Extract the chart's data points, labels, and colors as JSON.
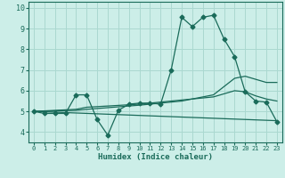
{
  "xlabel": "Humidex (Indice chaleur)",
  "bg_color": "#cceee8",
  "line_color": "#1a6b5a",
  "grid_color": "#aad8d0",
  "xlim": [
    -0.5,
    23.5
  ],
  "ylim": [
    3.5,
    10.3
  ],
  "yticks": [
    4,
    5,
    6,
    7,
    8,
    9,
    10
  ],
  "xticks": [
    0,
    1,
    2,
    3,
    4,
    5,
    6,
    7,
    8,
    9,
    10,
    11,
    12,
    13,
    14,
    15,
    16,
    17,
    18,
    19,
    20,
    21,
    22,
    23
  ],
  "line1_x": [
    0,
    1,
    2,
    3,
    4,
    5,
    6,
    7,
    8,
    9,
    10,
    11,
    12,
    13,
    14,
    15,
    16,
    17,
    18,
    19,
    20,
    21,
    22,
    23
  ],
  "line1_y": [
    5.0,
    4.9,
    4.9,
    4.9,
    5.8,
    5.8,
    4.6,
    3.85,
    5.05,
    5.35,
    5.4,
    5.4,
    5.35,
    7.0,
    9.55,
    9.1,
    9.55,
    9.65,
    8.5,
    7.65,
    5.95,
    5.5,
    5.45,
    4.5
  ],
  "line2_x": [
    0,
    4,
    5,
    10,
    14,
    15,
    16,
    17,
    19,
    20,
    21,
    22,
    23
  ],
  "line2_y": [
    5.0,
    5.05,
    5.1,
    5.3,
    5.5,
    5.6,
    5.7,
    5.8,
    6.6,
    6.7,
    6.55,
    6.4,
    6.4
  ],
  "line3_x": [
    0,
    4,
    5,
    10,
    14,
    15,
    16,
    17,
    19,
    20,
    21,
    22,
    23
  ],
  "line3_y": [
    5.0,
    5.1,
    5.2,
    5.35,
    5.55,
    5.6,
    5.65,
    5.7,
    6.0,
    5.95,
    5.75,
    5.6,
    5.5
  ],
  "line4_x": [
    0,
    23
  ],
  "line4_y": [
    5.0,
    4.55
  ]
}
